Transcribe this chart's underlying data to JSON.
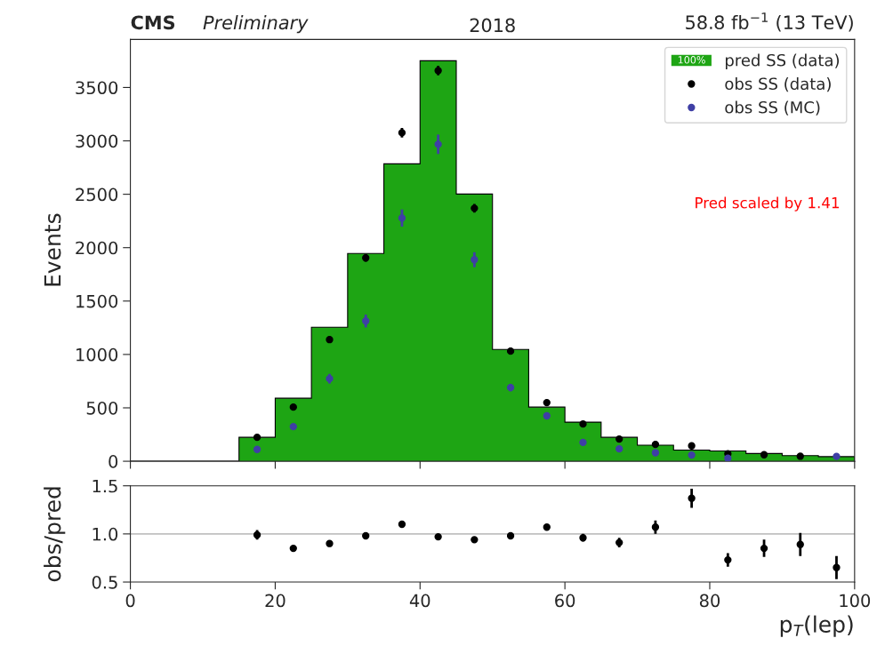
{
  "chart_data": [
    {
      "type": "histogram",
      "title": "2018",
      "ylabel": "Events",
      "annotations": [
        "CMS",
        "Preliminary",
        "58.8 fb$^{−1}$ (13 TeV)",
        "Pred scaled by 1.41",
        "100%"
      ],
      "bins": [
        0,
        5,
        10,
        15,
        20,
        25,
        30,
        35,
        40,
        45,
        50,
        55,
        60,
        65,
        70,
        75,
        80,
        85,
        90,
        95,
        100
      ],
      "series": [
        {
          "name": "pred SS (data)",
          "type": "histogram",
          "color": "#1ea514",
          "values": [
            0,
            0,
            0,
            224,
            590,
            1255,
            1945,
            2785,
            3750,
            2502,
            1047,
            507,
            366,
            224,
            150,
            105,
            96,
            72,
            53,
            43
          ]
        },
        {
          "name": "obs SS (data)",
          "type": "scatter",
          "color": "#000000",
          "x": [
            17.5,
            22.5,
            27.5,
            32.5,
            37.5,
            42.5,
            47.5,
            52.5,
            57.5,
            62.5,
            67.5,
            72.5,
            77.5,
            82.5,
            87.5,
            92.5
          ],
          "values": [
            224,
            507,
            1139,
            1904,
            3076,
            3658,
            2369,
            1031,
            549,
            349,
            208,
            158,
            144,
            70,
            61,
            47
          ],
          "errors": [
            15,
            20,
            30,
            35,
            45,
            45,
            40,
            30,
            20,
            20,
            15,
            15,
            12,
            10,
            10,
            8
          ]
        },
        {
          "name": "obs SS (MC)",
          "type": "scatter",
          "color": "#3f3fa5",
          "x": [
            17.5,
            22.5,
            27.5,
            32.5,
            37.5,
            42.5,
            47.5,
            52.5,
            57.5,
            62.5,
            67.5,
            72.5,
            77.5,
            82.5,
            87.5,
            92.5,
            97.5
          ],
          "values": [
            111,
            324,
            773,
            1313,
            2277,
            2968,
            1887,
            690,
            425,
            176,
            116,
            80,
            58,
            28,
            null,
            null,
            45
          ],
          "errors": [
            20,
            25,
            45,
            60,
            80,
            90,
            70,
            35,
            25,
            20,
            15,
            12,
            10,
            8,
            null,
            null,
            8
          ]
        }
      ],
      "xlim": [
        0,
        100
      ],
      "xticks": [
        0,
        20,
        40,
        60,
        80,
        100
      ],
      "ylim": [
        0,
        3950
      ],
      "yticks": [
        0,
        500,
        1000,
        1500,
        2000,
        2500,
        3000,
        3500
      ],
      "tick_labels": "y",
      "legend": "top right",
      "marker": "circle",
      "grid": false
    },
    {
      "type": "scatter",
      "xlabel": "p$_{T}$(lep)",
      "ylabel": "obs/pred",
      "x": [
        17.5,
        22.5,
        27.5,
        32.5,
        37.5,
        42.5,
        47.5,
        52.5,
        57.5,
        62.5,
        67.5,
        72.5,
        77.5,
        82.5,
        87.5,
        92.5,
        97.5
      ],
      "series": [
        {
          "color": "#000000",
          "values": [
            0.99,
            0.85,
            0.9,
            0.98,
            1.1,
            0.97,
            0.94,
            0.98,
            1.07,
            0.96,
            0.91,
            1.07,
            1.37,
            0.73,
            0.85,
            0.89,
            0.65
          ],
          "errors": [
            0.05,
            0.02,
            0.02,
            0.02,
            0.02,
            0.02,
            0.02,
            0.02,
            0.03,
            0.04,
            0.05,
            0.07,
            0.1,
            0.07,
            0.09,
            0.12,
            0.12
          ]
        }
      ],
      "ref_lines": [
        {
          "axis": "y",
          "value": 1,
          "color": "#c0c0c0"
        }
      ],
      "xlim": [
        0,
        100
      ],
      "xticks": [
        0,
        20,
        40,
        60,
        80,
        100
      ],
      "ylim": [
        0.5,
        1.5
      ],
      "yticks": [
        {
          "value": 0.5,
          "label": "0.5"
        },
        {
          "value": 1.0,
          "label": "1.0"
        },
        {
          "value": 1.5,
          "label": "1.5"
        }
      ],
      "marker": "circle",
      "grid": false
    }
  ]
}
